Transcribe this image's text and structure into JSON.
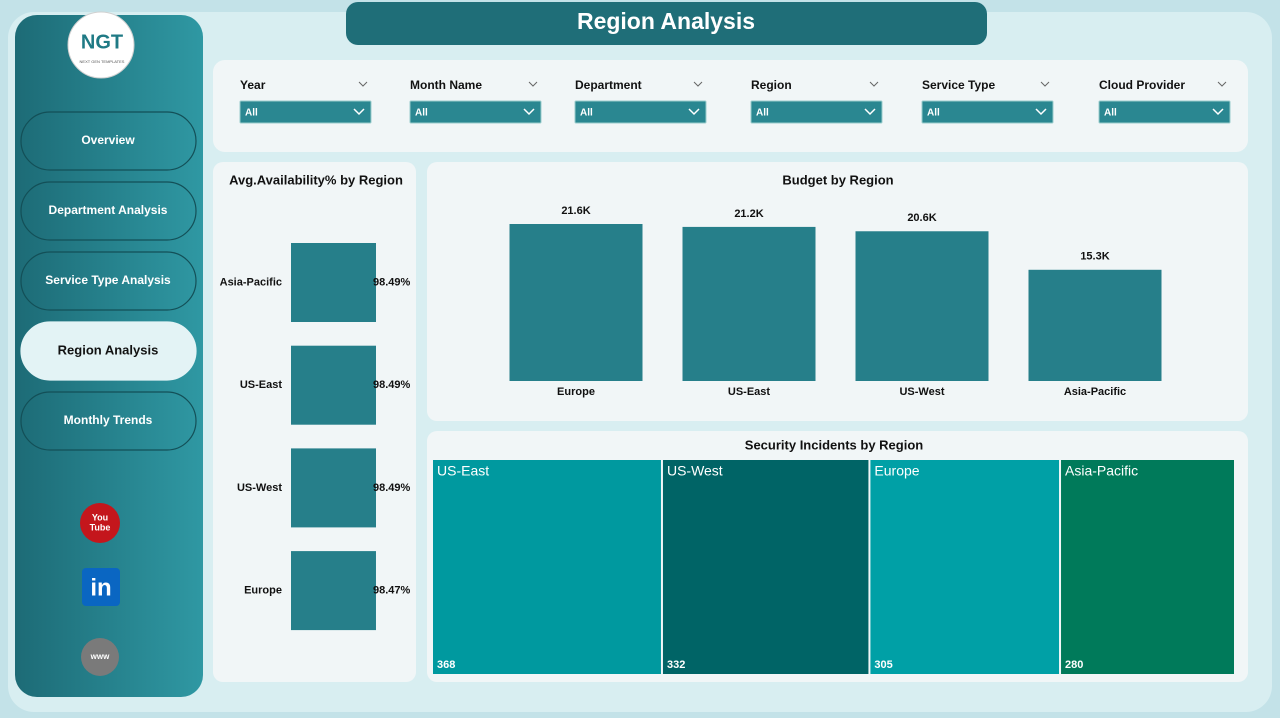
{
  "header": {
    "title": "Region Analysis",
    "logo": {
      "text": "NGT",
      "tagline": "NEXT GEN TEMPLATES"
    }
  },
  "nav": {
    "items": [
      "Overview",
      "Department Analysis",
      "Service Type Analysis",
      "Region Analysis",
      "Monthly Trends"
    ],
    "active": 3
  },
  "social_icons": [
    [
      "You",
      "Tube"
    ],
    [
      "in"
    ],
    [
      "www"
    ]
  ],
  "filters": [
    {
      "label": "Year",
      "value": "All"
    },
    {
      "label": "Month Name",
      "value": "All"
    },
    {
      "label": "Department",
      "value": "All"
    },
    {
      "label": "Region",
      "value": "All"
    },
    {
      "label": "Service Type",
      "value": "All"
    },
    {
      "label": "Cloud Provider",
      "value": "All"
    }
  ],
  "chart_data": [
    {
      "type": "hbar",
      "title": "Avg.Availability% by Region",
      "categories": [
        "Asia-Pacific",
        "US-East",
        "US-West",
        "Europe"
      ],
      "values": [
        98.49,
        98.49,
        98.49,
        98.47
      ],
      "value_labels": [
        "98.49%",
        "98.49%",
        "98.49%",
        "98.47%"
      ],
      "color": "#267f8a"
    },
    {
      "type": "bar",
      "title": "Budget by Region",
      "categories": [
        "Europe",
        "US-East",
        "US-West",
        "Asia-Pacific"
      ],
      "values": [
        21600,
        21200,
        20600,
        15300
      ],
      "value_labels": [
        "21.6K",
        "21.2K",
        "20.6K",
        "15.3K"
      ],
      "color": "#267f8a"
    },
    {
      "type": "treemap",
      "title": "Security Incidents by Region",
      "categories": [
        "US-East",
        "US-West",
        "Europe",
        "Asia-Pacific"
      ],
      "values": [
        368,
        332,
        305,
        280
      ],
      "colors": [
        "#00999f",
        "#006466",
        "#00a0a6",
        "#007a5a"
      ]
    }
  ]
}
